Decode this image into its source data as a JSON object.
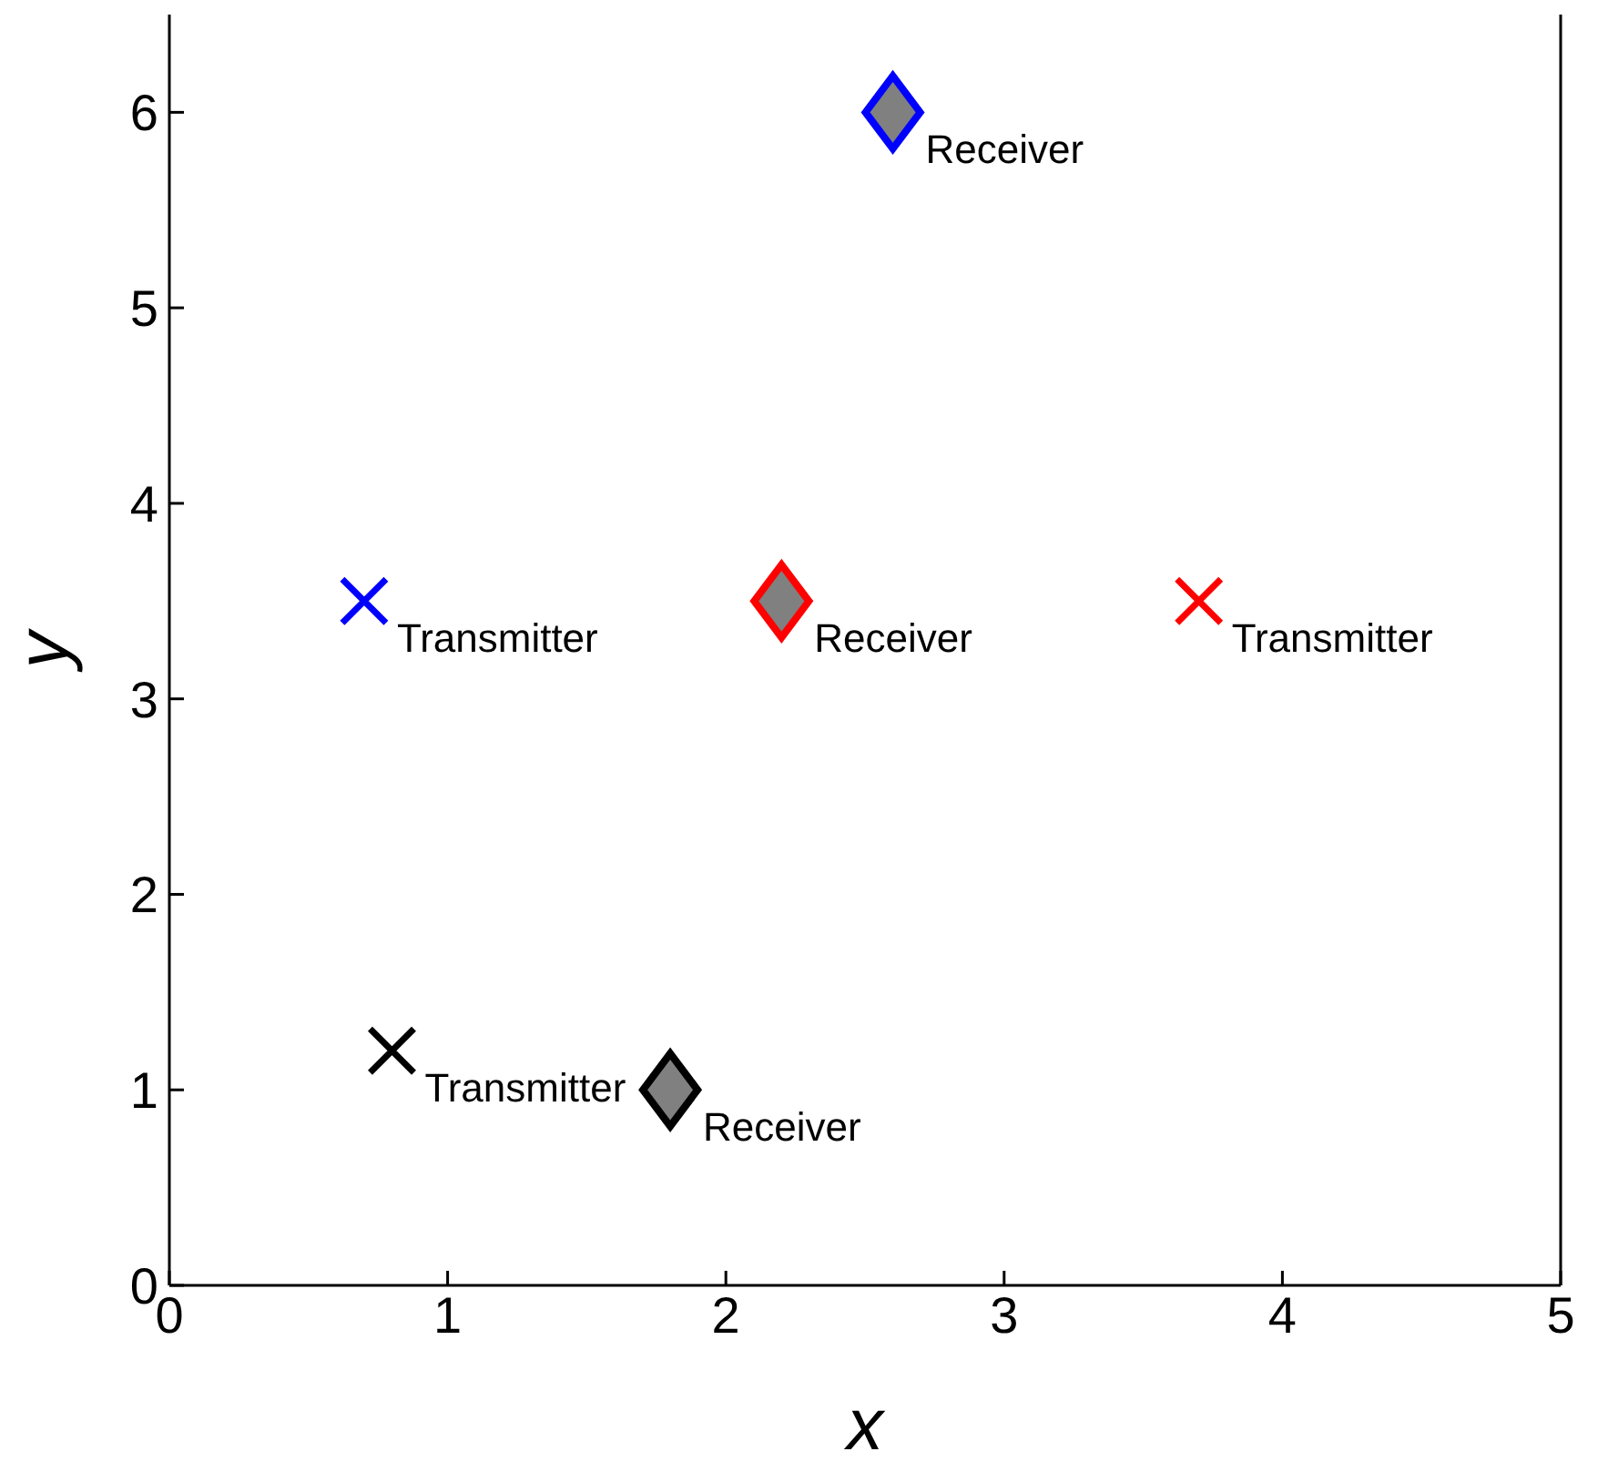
{
  "chart_data": {
    "type": "scatter",
    "xlabel": "x",
    "ylabel": "y",
    "xlim": [
      0,
      5
    ],
    "xticks": [
      0,
      1,
      2,
      3,
      4,
      5
    ],
    "ylim": [
      0,
      6.5
    ],
    "yticks": [
      0,
      1,
      2,
      3,
      4,
      5,
      6
    ],
    "grid": false,
    "legend": false,
    "series": [
      {
        "color": "#0000ff",
        "x": [
          0.7
        ],
        "values": [
          3.5
        ],
        "marker": "cross"
      },
      {
        "color": "#0000ff",
        "x": [
          2.6
        ],
        "values": [
          6
        ],
        "marker": "diamond"
      },
      {
        "color": "#ff0000",
        "x": [
          3.7
        ],
        "values": [
          3.5
        ],
        "marker": "cross"
      },
      {
        "color": "#ff0000",
        "x": [
          2.2
        ],
        "values": [
          3.5
        ],
        "marker": "diamond"
      },
      {
        "color": "#000000",
        "x": [
          0.8
        ],
        "values": [
          1.2
        ],
        "marker": "cross"
      },
      {
        "color": "#000000",
        "x": [
          1.8
        ],
        "values": [
          1
        ],
        "marker": "diamond"
      }
    ],
    "annotations": [
      {
        "text": "Transmitter",
        "x": 0.7,
        "y": 3.5
      },
      {
        "text": "Receiver",
        "x": 2.6,
        "y": 6
      },
      {
        "text": "Transmitter",
        "x": 3.7,
        "y": 3.5
      },
      {
        "text": "Receiver",
        "x": 2.2,
        "y": 3.5
      },
      {
        "text": "Transmitter",
        "x": 0.8,
        "y": 1.2
      },
      {
        "text": "Receiver",
        "x": 1.8,
        "y": 1
      }
    ]
  }
}
